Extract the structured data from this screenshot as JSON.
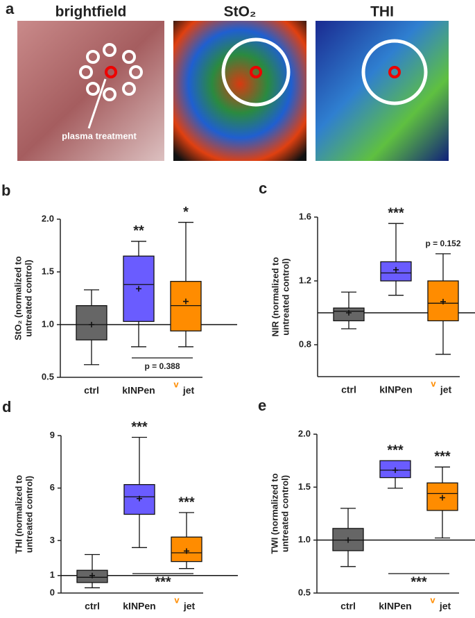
{
  "panel_a": {
    "letter": "a",
    "titles": [
      "brightfield",
      "StO₂",
      "THI"
    ],
    "annotation": "plasma treatment"
  },
  "chart_data": [
    {
      "type": "box",
      "letter": "b",
      "ylabel": [
        "StO₂ (normalized to",
        "untreated control)"
      ],
      "categories": [
        "ctrl",
        "kINPen",
        "jet"
      ],
      "category_marks": [
        null,
        null,
        "v"
      ],
      "category_mark_color": "#ff8c00",
      "colors": [
        "#666666",
        "#6a5cff",
        "#ff8c00"
      ],
      "reference": 1.0,
      "ylim": [
        0.5,
        2.0
      ],
      "yticks": [
        {
          "value": 0.5,
          "label": "0.5"
        },
        {
          "value": 1.0,
          "label": "1.0"
        },
        {
          "value": 1.5,
          "label": "1.5"
        },
        {
          "value": 2.0,
          "label": "2.0"
        }
      ],
      "boxes": [
        {
          "min": 0.62,
          "q1": 0.855,
          "median": 1.0,
          "q3": 1.18,
          "max": 1.33,
          "mean": 1.0
        },
        {
          "min": 0.79,
          "q1": 1.03,
          "median": 1.38,
          "q3": 1.65,
          "max": 1.79,
          "mean": 1.34
        },
        {
          "min": 0.79,
          "q1": 0.94,
          "median": 1.18,
          "q3": 1.41,
          "max": 1.97,
          "mean": 1.22
        }
      ],
      "annotations": [
        {
          "text": "**",
          "category": 1,
          "position": "above"
        },
        {
          "text": "*",
          "category": 2,
          "position": "above"
        },
        {
          "text": "p = 0.388",
          "between": [
            1,
            2
          ],
          "position": "below"
        }
      ]
    },
    {
      "type": "box",
      "letter": "c",
      "ylabel": [
        "NIR (normalized to",
        "untreated control)"
      ],
      "categories": [
        "ctrl",
        "kINPen",
        "jet"
      ],
      "category_marks": [
        null,
        null,
        "v"
      ],
      "category_mark_color": "#ff8c00",
      "colors": [
        "#666666",
        "#6a5cff",
        "#ff8c00"
      ],
      "reference": 1.0,
      "ylim": [
        0.6,
        1.6
      ],
      "yticks": [
        0.8,
        1.2,
        1.6
      ],
      "boxes": [
        {
          "min": 0.9,
          "q1": 0.95,
          "median": 1.01,
          "q3": 1.03,
          "max": 1.13,
          "mean": 1.0
        },
        {
          "min": 1.11,
          "q1": 1.2,
          "median": 1.25,
          "q3": 1.32,
          "max": 1.56,
          "mean": 1.27
        },
        {
          "min": 0.74,
          "q1": 0.95,
          "median": 1.06,
          "q3": 1.2,
          "max": 1.37,
          "mean": 1.07
        }
      ],
      "annotations": [
        {
          "text": "***",
          "category": 1,
          "position": "above"
        },
        {
          "text": "p = 0.152",
          "category": 2,
          "position": "above"
        }
      ]
    },
    {
      "type": "box",
      "letter": "d",
      "ylabel": [
        "THI (normalized to",
        "untreated control)"
      ],
      "categories": [
        "ctrl",
        "kINPen",
        "jet"
      ],
      "category_marks": [
        null,
        null,
        "v"
      ],
      "category_mark_color": "#ff8c00",
      "colors": [
        "#666666",
        "#6a5cff",
        "#ff8c00"
      ],
      "reference": 1,
      "ylim": [
        0,
        9
      ],
      "yticks": [
        0,
        1,
        3,
        6,
        9
      ],
      "boxes": [
        {
          "min": 0.3,
          "q1": 0.6,
          "median": 0.9,
          "q3": 1.3,
          "max": 2.2,
          "mean": 1.0
        },
        {
          "min": 2.6,
          "q1": 4.5,
          "median": 5.5,
          "q3": 6.2,
          "max": 8.9,
          "mean": 5.4
        },
        {
          "min": 1.4,
          "q1": 1.8,
          "median": 2.3,
          "q3": 3.2,
          "max": 4.6,
          "mean": 2.4
        }
      ],
      "annotations": [
        {
          "text": "***",
          "category": 1,
          "position": "above"
        },
        {
          "text": "***",
          "category": 2,
          "position": "above"
        },
        {
          "text": "***",
          "between": [
            1,
            2
          ],
          "position": "below"
        }
      ]
    },
    {
      "type": "box",
      "letter": "e",
      "ylabel": [
        "TWI (normalized to",
        "untreated control)"
      ],
      "categories": [
        "ctrl",
        "kINPen",
        "jet"
      ],
      "category_marks": [
        null,
        null,
        "v"
      ],
      "category_mark_color": "#ff8c00",
      "colors": [
        "#666666",
        "#6a5cff",
        "#ff8c00"
      ],
      "reference": 1.0,
      "ylim": [
        0.5,
        2.0
      ],
      "yticks": [
        {
          "value": 0.5,
          "label": "0.5"
        },
        {
          "value": 1.0,
          "label": "1.0"
        },
        {
          "value": 1.5,
          "label": "1.5"
        },
        {
          "value": 2.0,
          "label": "2.0"
        }
      ],
      "boxes": [
        {
          "min": 0.75,
          "q1": 0.9,
          "median": 1.0,
          "q3": 1.11,
          "max": 1.3,
          "mean": 1.0
        },
        {
          "min": 1.49,
          "q1": 1.59,
          "median": 1.66,
          "q3": 1.75,
          "max": 1.75,
          "mean": 1.66
        },
        {
          "min": 1.02,
          "q1": 1.28,
          "median": 1.44,
          "q3": 1.54,
          "max": 1.69,
          "mean": 1.4
        }
      ],
      "annotations": [
        {
          "text": "***",
          "category": 1,
          "position": "above"
        },
        {
          "text": "***",
          "category": 2,
          "position": "above"
        },
        {
          "text": "***",
          "between": [
            1,
            2
          ],
          "position": "below"
        }
      ]
    }
  ]
}
